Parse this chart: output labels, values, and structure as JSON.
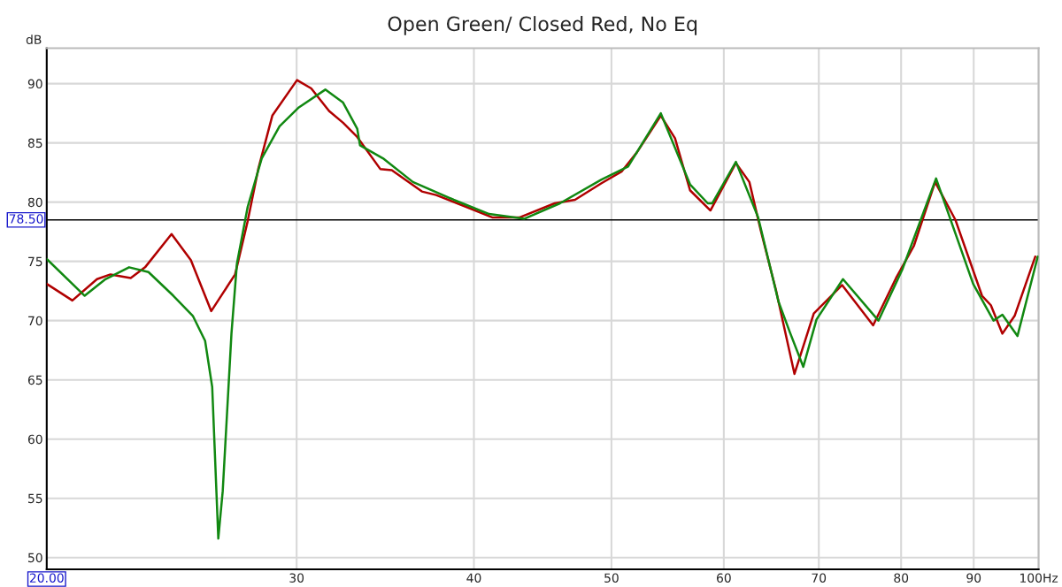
{
  "chart_data": {
    "type": "line",
    "title": "Open Green/ Closed Red, No Eq",
    "ylabel": "dB",
    "xlim": [
      20,
      100
    ],
    "ylim": [
      49,
      93
    ],
    "log": "x",
    "grid": true,
    "legend": false,
    "xticks": [
      {
        "value": 20,
        "label": "20.00"
      },
      30,
      40,
      50,
      60,
      70,
      80,
      90,
      {
        "value": 100,
        "label": "100Hz"
      }
    ],
    "yticks": [
      50,
      55,
      60,
      65,
      70,
      75,
      80,
      85,
      90
    ],
    "ref_lines": [
      {
        "axis": "y",
        "value": 78.5,
        "label": "78.50",
        "color": "#000000"
      }
    ],
    "series": [
      {
        "color": "#b00000",
        "x": [
          20.0,
          20.85,
          21.7,
          22.18,
          22.92,
          23.46,
          24.49,
          25.27,
          26.12,
          27.15,
          27.71,
          28.19,
          28.84,
          30.02,
          30.72,
          31.62,
          32.35,
          33.1,
          34.36,
          35.01,
          36.76,
          37.62,
          39.5,
          41.24,
          43.05,
          45.6,
          47.13,
          49.2,
          50.85,
          52.11,
          54.17,
          55.43,
          56.8,
          58.71,
          61.19,
          62.54,
          63.71,
          65.29,
          67.29,
          69.43,
          72.7,
          76.45,
          79.35,
          81.67,
          84.54,
          87.37,
          91.22,
          92.54,
          94.29,
          96.18,
          99.45
        ],
        "values": [
          73.1,
          71.7,
          73.5,
          73.9,
          73.6,
          74.5,
          77.3,
          75.1,
          70.8,
          73.9,
          78.4,
          82.8,
          87.3,
          90.3,
          89.6,
          87.7,
          86.7,
          85.5,
          82.8,
          82.7,
          80.9,
          80.6,
          79.6,
          78.7,
          78.7,
          79.9,
          80.2,
          81.6,
          82.6,
          84.2,
          87.3,
          85.4,
          81.0,
          79.3,
          83.3,
          81.7,
          77.6,
          72.6,
          65.5,
          70.6,
          73.0,
          69.6,
          73.6,
          76.3,
          81.7,
          78.5,
          72.1,
          71.3,
          68.9,
          70.4,
          75.4
        ]
      },
      {
        "color": "#118811",
        "x": [
          20.0,
          21.27,
          22.0,
          22.86,
          23.59,
          24.56,
          25.35,
          25.86,
          26.16,
          26.31,
          26.42,
          26.61,
          26.99,
          27.23,
          27.71,
          28.35,
          29.18,
          30.11,
          31.43,
          32.35,
          33.1,
          33.25,
          34.51,
          36.23,
          38.71,
          41.0,
          43.42,
          45.99,
          49.2,
          51.37,
          54.17,
          56.8,
          58.46,
          58.88,
          61.19,
          63.44,
          65.57,
          66.8,
          68.26,
          69.74,
          72.8,
          77.11,
          80.15,
          84.67,
          89.92,
          92.94,
          94.29,
          96.62,
          99.86
        ],
        "values": [
          75.2,
          72.1,
          73.5,
          74.5,
          74.1,
          72.1,
          70.4,
          68.3,
          64.4,
          57.0,
          51.6,
          55.6,
          68.9,
          74.8,
          79.6,
          83.7,
          86.4,
          88.0,
          89.5,
          88.4,
          86.2,
          84.8,
          83.7,
          81.7,
          80.2,
          79.0,
          78.6,
          79.9,
          81.9,
          83.0,
          87.5,
          81.5,
          79.9,
          79.9,
          83.4,
          78.7,
          71.6,
          69.0,
          66.1,
          70.1,
          73.5,
          70.0,
          74.3,
          82.0,
          73.1,
          70.0,
          70.5,
          68.7,
          75.4
        ]
      }
    ]
  }
}
